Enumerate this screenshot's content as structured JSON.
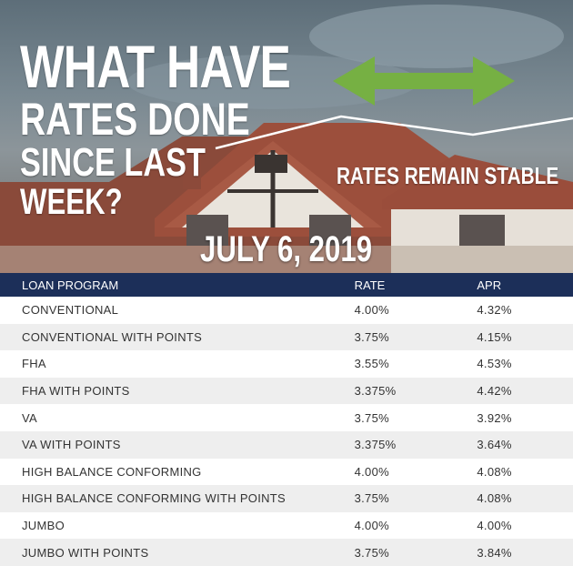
{
  "hero": {
    "headline_line1": "WHAT HAVE",
    "headline_line2": "RATES DONE",
    "headline_line3": "SINCE LAST",
    "headline_line4": "WEEK?",
    "status": "RATES REMAIN STABLE",
    "date": "JULY 6, 2019",
    "arrow_color": "#76b043"
  },
  "table": {
    "headers": [
      "LOAN PROGRAM",
      "RATE",
      "APR"
    ],
    "header_color": "#1c2f59",
    "rows": [
      {
        "program": "CONVENTIONAL",
        "rate": "4.00%",
        "apr": "4.32%"
      },
      {
        "program": "CONVENTIONAL WITH POINTS",
        "rate": "3.75%",
        "apr": "4.15%"
      },
      {
        "program": "FHA",
        "rate": "3.55%",
        "apr": "4.53%"
      },
      {
        "program": "FHA WITH POINTS",
        "rate": "3.375%",
        "apr": "4.42%"
      },
      {
        "program": "VA",
        "rate": "3.75%",
        "apr": "3.92%"
      },
      {
        "program": "VA WITH POINTS",
        "rate": "3.375%",
        "apr": "3.64%"
      },
      {
        "program": "HIGH BALANCE CONFORMING",
        "rate": "4.00%",
        "apr": "4.08%"
      },
      {
        "program": "HIGH BALANCE CONFORMING WITH POINTS",
        "rate": "3.75%",
        "apr": "4.08%"
      },
      {
        "program": "JUMBO",
        "rate": "4.00%",
        "apr": "4.00%"
      },
      {
        "program": "JUMBO WITH POINTS",
        "rate": "3.75%",
        "apr": "3.84%"
      }
    ]
  }
}
